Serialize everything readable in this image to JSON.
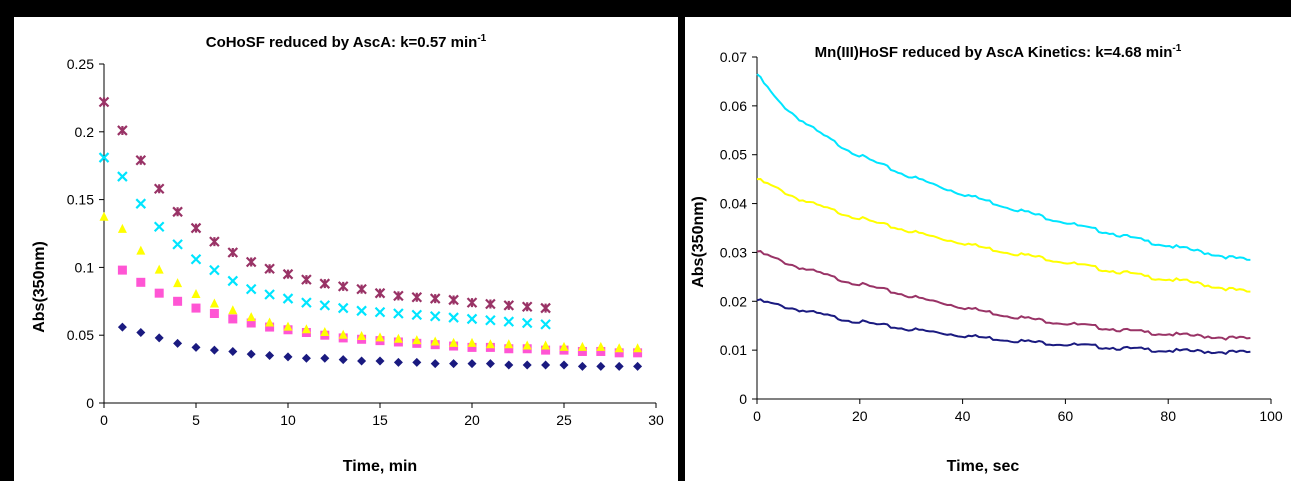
{
  "colors": {
    "navy": "#1a1a80",
    "magenta": "#ff55d4",
    "yellow": "#ffff00",
    "cyan": "#00e5ff",
    "purple": "#993366"
  },
  "chart_data": [
    {
      "type": "scatter",
      "title": "CoHoSF reduced by AscA: k=0.57 min",
      "title_sup": "-1",
      "xlabel": "Time, min",
      "ylabel": "Abs(350nm)",
      "xlim": [
        0,
        30
      ],
      "ylim": [
        0,
        0.25
      ],
      "xticks": [
        "0",
        "5",
        "10",
        "15",
        "20",
        "25",
        "30"
      ],
      "yticks": [
        "0",
        "0.05",
        "0.1",
        "0.15",
        "0.2",
        "0.25"
      ],
      "grid": false,
      "series": [
        {
          "marker": "diamond",
          "color": "#1a1a80",
          "x": [
            1,
            2,
            3,
            4,
            5,
            6,
            7,
            8,
            9,
            10,
            11,
            12,
            13,
            14,
            15,
            16,
            17,
            18,
            19,
            20,
            21,
            22,
            23,
            24,
            25,
            26,
            27,
            28,
            29
          ],
          "y": [
            0.056,
            0.052,
            0.048,
            0.044,
            0.041,
            0.039,
            0.038,
            0.036,
            0.035,
            0.034,
            0.033,
            0.033,
            0.032,
            0.031,
            0.031,
            0.03,
            0.03,
            0.029,
            0.029,
            0.029,
            0.029,
            0.028,
            0.028,
            0.028,
            0.028,
            0.027,
            0.027,
            0.027,
            0.027
          ]
        },
        {
          "marker": "square",
          "color": "#ff55d4",
          "x": [
            1,
            2,
            3,
            4,
            5,
            6,
            7,
            8,
            9,
            10,
            11,
            12,
            13,
            14,
            15,
            16,
            17,
            18,
            19,
            20,
            21,
            22,
            23,
            24,
            25,
            26,
            27,
            28,
            29
          ],
          "y": [
            0.098,
            0.089,
            0.081,
            0.075,
            0.07,
            0.066,
            0.062,
            0.059,
            0.056,
            0.054,
            0.052,
            0.05,
            0.048,
            0.047,
            0.046,
            0.045,
            0.044,
            0.043,
            0.042,
            0.041,
            0.041,
            0.04,
            0.04,
            0.039,
            0.039,
            0.038,
            0.038,
            0.037,
            0.037
          ]
        },
        {
          "marker": "triangle",
          "color": "#ffff00",
          "x": [
            0,
            1,
            2,
            3,
            4,
            5,
            6,
            7,
            8,
            9,
            10,
            11,
            12,
            13,
            14,
            15,
            16,
            17,
            18,
            19,
            20,
            21,
            22,
            23,
            24,
            25,
            26,
            27,
            28,
            29
          ],
          "y": [
            0.137,
            0.128,
            0.112,
            0.098,
            0.088,
            0.08,
            0.073,
            0.068,
            0.063,
            0.059,
            0.056,
            0.054,
            0.052,
            0.05,
            0.049,
            0.048,
            0.047,
            0.046,
            0.045,
            0.044,
            0.044,
            0.043,
            0.043,
            0.042,
            0.042,
            0.041,
            0.041,
            0.041,
            0.04,
            0.04
          ]
        },
        {
          "marker": "x",
          "color": "#00e5ff",
          "x": [
            0,
            1,
            2,
            3,
            4,
            5,
            6,
            7,
            8,
            9,
            10,
            11,
            12,
            13,
            14,
            15,
            16,
            17,
            18,
            19,
            20,
            21,
            22,
            23,
            24
          ],
          "y": [
            0.181,
            0.167,
            0.147,
            0.13,
            0.117,
            0.106,
            0.098,
            0.09,
            0.084,
            0.08,
            0.077,
            0.074,
            0.072,
            0.07,
            0.068,
            0.067,
            0.066,
            0.065,
            0.064,
            0.063,
            0.062,
            0.061,
            0.06,
            0.059,
            0.058
          ]
        },
        {
          "marker": "asterisk",
          "color": "#993366",
          "x": [
            0,
            1,
            2,
            3,
            4,
            5,
            6,
            7,
            8,
            9,
            10,
            11,
            12,
            13,
            14,
            15,
            16,
            17,
            18,
            19,
            20,
            21,
            22,
            23,
            24
          ],
          "y": [
            0.222,
            0.201,
            0.179,
            0.158,
            0.141,
            0.129,
            0.119,
            0.111,
            0.104,
            0.099,
            0.095,
            0.091,
            0.088,
            0.086,
            0.084,
            0.081,
            0.079,
            0.078,
            0.077,
            0.076,
            0.074,
            0.073,
            0.072,
            0.071,
            0.07
          ]
        }
      ]
    },
    {
      "type": "line",
      "title": "Mn(III)HoSF reduced by AscA Kinetics: k=4.68 min",
      "title_sup": "-1",
      "xlabel": "Time, sec",
      "ylabel": "Abs(350nm)",
      "xlim": [
        0,
        100
      ],
      "ylim": [
        0,
        0.07
      ],
      "xticks": [
        "0",
        "20",
        "40",
        "60",
        "80",
        "100"
      ],
      "yticks": [
        "0",
        "0.01",
        "0.02",
        "0.03",
        "0.04",
        "0.05",
        "0.06",
        "0.07"
      ],
      "grid": false,
      "series": [
        {
          "color": "#00e5ff",
          "x": [
            0,
            4,
            8,
            12,
            16,
            20,
            24,
            28,
            32,
            36,
            40,
            44,
            48,
            52,
            56,
            60,
            64,
            68,
            72,
            76,
            80,
            84,
            88,
            92,
            96
          ],
          "y": [
            0.0665,
            0.061,
            0.0575,
            0.0545,
            0.052,
            0.0498,
            0.048,
            0.0462,
            0.0448,
            0.0433,
            0.042,
            0.0408,
            0.0395,
            0.0384,
            0.0372,
            0.0362,
            0.035,
            0.0342,
            0.0332,
            0.0322,
            0.0314,
            0.0306,
            0.0298,
            0.029,
            0.0283
          ]
        },
        {
          "color": "#ffff00",
          "x": [
            0,
            4,
            8,
            12,
            16,
            20,
            24,
            28,
            32,
            36,
            40,
            44,
            48,
            52,
            56,
            60,
            64,
            68,
            72,
            76,
            80,
            84,
            88,
            92,
            96
          ],
          "y": [
            0.045,
            0.043,
            0.041,
            0.0395,
            0.0382,
            0.037,
            0.0358,
            0.0348,
            0.0338,
            0.0328,
            0.032,
            0.031,
            0.0302,
            0.0295,
            0.0288,
            0.028,
            0.0272,
            0.0264,
            0.0258,
            0.025,
            0.0245,
            0.024,
            0.0232,
            0.0225,
            0.0218
          ]
        },
        {
          "color": "#993366",
          "x": [
            0,
            4,
            8,
            12,
            16,
            20,
            24,
            28,
            32,
            36,
            40,
            44,
            48,
            52,
            56,
            60,
            64,
            68,
            72,
            76,
            80,
            84,
            88,
            92,
            96
          ],
          "y": [
            0.0302,
            0.0285,
            0.027,
            0.0258,
            0.0245,
            0.0235,
            0.0225,
            0.0215,
            0.0205,
            0.0197,
            0.0188,
            0.018,
            0.0172,
            0.0166,
            0.016,
            0.0155,
            0.015,
            0.0145,
            0.014,
            0.0136,
            0.0133,
            0.013,
            0.0128,
            0.0125,
            0.0123
          ]
        },
        {
          "color": "#1a1a80",
          "x": [
            0,
            4,
            8,
            12,
            16,
            20,
            24,
            28,
            32,
            36,
            40,
            44,
            48,
            52,
            56,
            60,
            64,
            68,
            72,
            76,
            80,
            84,
            88,
            92,
            96
          ],
          "y": [
            0.0202,
            0.0192,
            0.0183,
            0.0174,
            0.0165,
            0.0158,
            0.0151,
            0.0145,
            0.014,
            0.0135,
            0.013,
            0.0126,
            0.0122,
            0.0118,
            0.0115,
            0.0112,
            0.0109,
            0.0106,
            0.0103,
            0.0101,
            0.0099,
            0.0098,
            0.0097,
            0.0096,
            0.0095
          ]
        }
      ]
    }
  ]
}
